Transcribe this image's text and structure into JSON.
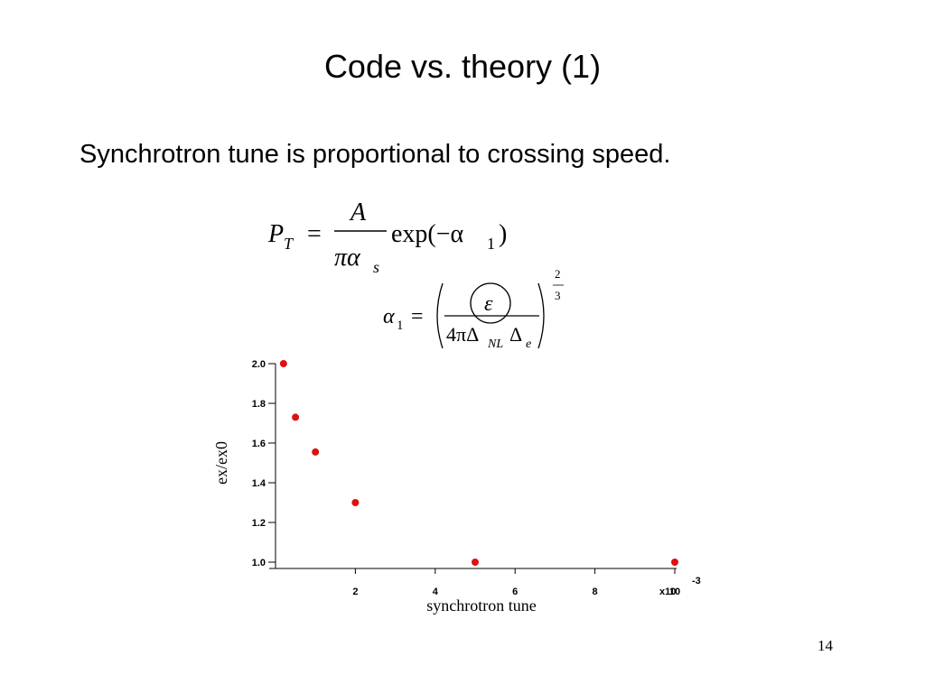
{
  "slide": {
    "title": "Code vs. theory (1)",
    "body": "Synchrotron tune is proportional to crossing speed.",
    "page_number": "14"
  },
  "equations": {
    "eq1": {
      "lhs_symbol": "P",
      "lhs_subscript": "T",
      "equals": "=",
      "numerator": "A",
      "denominator": "πα",
      "denominator_subscript": "s",
      "tail": "exp(−α",
      "tail_subscript": "1",
      "close": ")"
    },
    "eq2": {
      "lhs_symbol": "α",
      "lhs_subscript": "1",
      "equals": "=",
      "numerator": "ε",
      "denominator_a": "4πΔ",
      "denominator_sub_a": "NL",
      "denominator_b": "Δ",
      "denominator_sub_b": "e",
      "exponent_num": "2",
      "exponent_den": "3"
    }
  },
  "chart_data": {
    "type": "scatter",
    "xlabel": "synchrotron tune",
    "ylabel": "ex/ex0",
    "x_multiplier_label": "x10",
    "x_multiplier_exponent": "-3",
    "xlim": [
      0,
      10
    ],
    "ylim": [
      1.0,
      2.0
    ],
    "xticks": [
      2,
      4,
      6,
      8,
      10
    ],
    "yticks": [
      1.0,
      1.2,
      1.4,
      1.6,
      1.8,
      2.0
    ],
    "xtick_labels": [
      "2",
      "4",
      "6",
      "8",
      "10"
    ],
    "ytick_labels": [
      "1.0",
      "1.2",
      "1.4",
      "1.6",
      "1.8",
      "2.0"
    ],
    "grid": false,
    "series": [
      {
        "color": "#dd1111",
        "x": [
          0.2,
          0.5,
          1.0,
          2.0,
          5.0,
          10.0
        ],
        "y": [
          2.0,
          1.73,
          1.555,
          1.3,
          1.0,
          1.0
        ]
      }
    ]
  }
}
